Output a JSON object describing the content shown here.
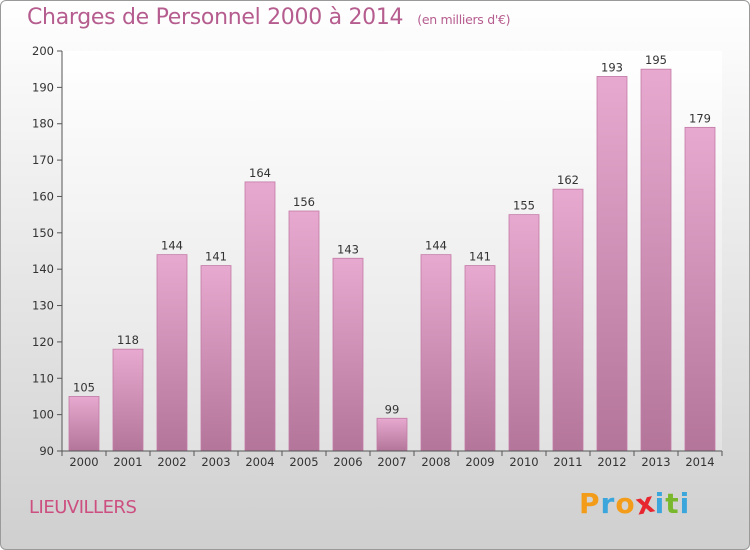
{
  "title": "Charges de Personnel 2000 à 2014",
  "subtitle": "(en milliers d'€)",
  "commune": "LIEUVILLERS",
  "logo": {
    "text": "Proxiti",
    "letters": [
      "P",
      "r",
      "o",
      "x",
      "i",
      "t",
      "i"
    ],
    "colors": [
      "#f39c1a",
      "#3aa6dc",
      "#f39c1a",
      "#e8262f",
      "#3aa6dc",
      "#79b82c",
      "#3aa6dc"
    ]
  },
  "chart_data": {
    "type": "bar",
    "categories": [
      "2000",
      "2001",
      "2002",
      "2003",
      "2004",
      "2005",
      "2006",
      "2007",
      "2008",
      "2009",
      "2010",
      "2011",
      "2012",
      "2013",
      "2014"
    ],
    "values": [
      105,
      118,
      144,
      141,
      164,
      156,
      143,
      99,
      144,
      141,
      155,
      162,
      193,
      195,
      179
    ],
    "ylim": [
      90,
      200
    ],
    "yticks": [
      90,
      100,
      110,
      120,
      130,
      140,
      150,
      160,
      170,
      180,
      190,
      200
    ],
    "grid": false,
    "legend": "none",
    "bar_color": "#d98dba"
  }
}
